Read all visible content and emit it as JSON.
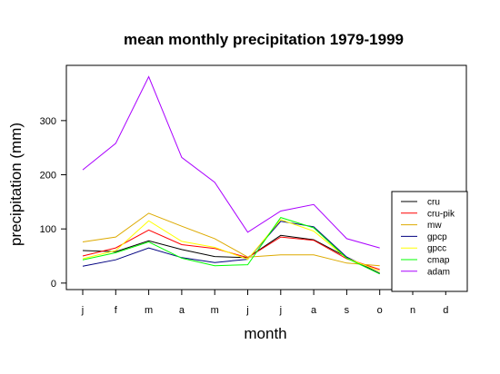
{
  "chart_data": {
    "type": "line",
    "title": "mean monthly precipitation 1979-1999",
    "xlabel": "month",
    "ylabel": "precipitation (mm)",
    "categories": [
      "j",
      "f",
      "m",
      "a",
      "m",
      "j",
      "j",
      "a",
      "s",
      "o",
      "n",
      "d"
    ],
    "ylim": [
      -12,
      402
    ],
    "yticks": [
      0,
      100,
      200,
      300
    ],
    "yticks_labels": [
      "0",
      "100",
      "200",
      "300"
    ],
    "grid": false,
    "legend_position": "bottom-right",
    "series": [
      {
        "name": "cru",
        "color": "#000000",
        "values": [
          60,
          58,
          78,
          62,
          49,
          47,
          88,
          80,
          48,
          18,
          null,
          null
        ]
      },
      {
        "name": "cru-pik",
        "color": "#ff0000",
        "values": [
          50,
          65,
          98,
          71,
          64,
          47,
          85,
          79,
          45,
          25,
          null,
          null
        ]
      },
      {
        "name": "mw",
        "color": "#ddaa00",
        "values": [
          76,
          85,
          129,
          105,
          82,
          48,
          52,
          52,
          37,
          32,
          null,
          null
        ]
      },
      {
        "name": "gpcp",
        "color": "#000080",
        "values": [
          31,
          43,
          65,
          47,
          38,
          44,
          114,
          104,
          48,
          17,
          null,
          null
        ]
      },
      {
        "name": "gpcc",
        "color": "#ffff00",
        "values": [
          45,
          60,
          115,
          77,
          66,
          44,
          117,
          96,
          46,
          22,
          null,
          null
        ]
      },
      {
        "name": "cmap",
        "color": "#00ff00",
        "values": [
          43,
          56,
          76,
          46,
          32,
          34,
          121,
          102,
          46,
          17,
          null,
          null
        ]
      },
      {
        "name": "adam",
        "color": "#aa00ff",
        "values": [
          209,
          258,
          381,
          232,
          186,
          94,
          133,
          145,
          82,
          65,
          null,
          null
        ]
      }
    ]
  }
}
